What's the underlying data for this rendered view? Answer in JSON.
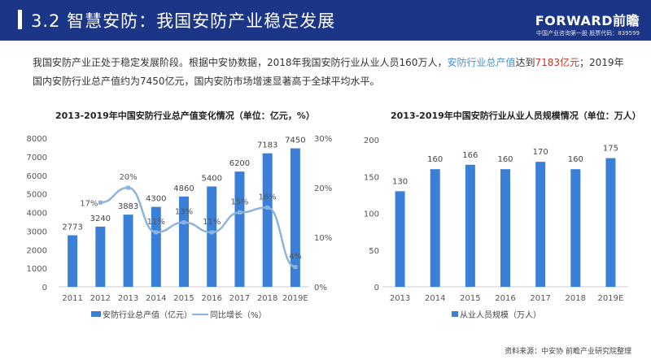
{
  "header": {
    "title": "3.2 智慧安防：我国安防产业稳定发展",
    "logo": "FORWARD前瞻",
    "logo_sub": "中国产业咨询第一股 股票代码：839599"
  },
  "intro": {
    "p1": "我国安防产业正处于稳定发展阶段。根据中安协数据，2018年我国安防行业从业人员160万人，",
    "hl1": "安防行业总产值",
    "p2": "达到",
    "hl2": "7183亿元",
    "p3": "；2019年国内安防行业总产值约为7450亿元，国内安防市场增速显著高于全球平均水平。"
  },
  "colors": {
    "header": "#1b3587",
    "bar": "#3a7fd8",
    "line": "#8db4dc"
  },
  "source": "资料来源：中安协 前瞻产业研究院整理",
  "chart_data": [
    {
      "type": "bar+line",
      "title": "2013-2019年中国安防行业总产值变化情况（单位：亿元，%）",
      "categories": [
        "2011",
        "2012",
        "2013",
        "2014",
        "2015",
        "2016",
        "2017",
        "2018",
        "2019E"
      ],
      "series": [
        {
          "name": "安防行业总产值（亿元）",
          "type": "bar",
          "axis": "left",
          "values": [
            2773,
            3240,
            3883,
            4300,
            4860,
            5400,
            6200,
            7183,
            7450
          ]
        },
        {
          "name": "同比增长（%）",
          "type": "line",
          "axis": "right",
          "values": [
            null,
            17,
            20,
            11,
            13,
            11,
            15,
            16,
            4
          ]
        }
      ],
      "ylim": [
        0,
        8000
      ],
      "yticks": [
        "0",
        "1000",
        "2000",
        "3000",
        "4000",
        "5000",
        "6000",
        "7000",
        "8000"
      ],
      "y2lim": [
        0,
        30
      ],
      "y2ticks": [
        "0%",
        "10%",
        "20%",
        "30%"
      ],
      "legend": "bottom"
    },
    {
      "type": "bar",
      "title": "2013-2019年中国安防行业从业人员规模情况（单位：万人）",
      "categories": [
        "2013",
        "2014",
        "2015",
        "2016",
        "2017",
        "2018",
        "2019E"
      ],
      "series": [
        {
          "name": "从业人员规模（万人）",
          "values": [
            130,
            160,
            166,
            160,
            170,
            160,
            175
          ]
        }
      ],
      "ylim": [
        0,
        200
      ],
      "yticks": [
        "0",
        "50",
        "100",
        "150",
        "200"
      ],
      "legend": "bottom"
    }
  ]
}
